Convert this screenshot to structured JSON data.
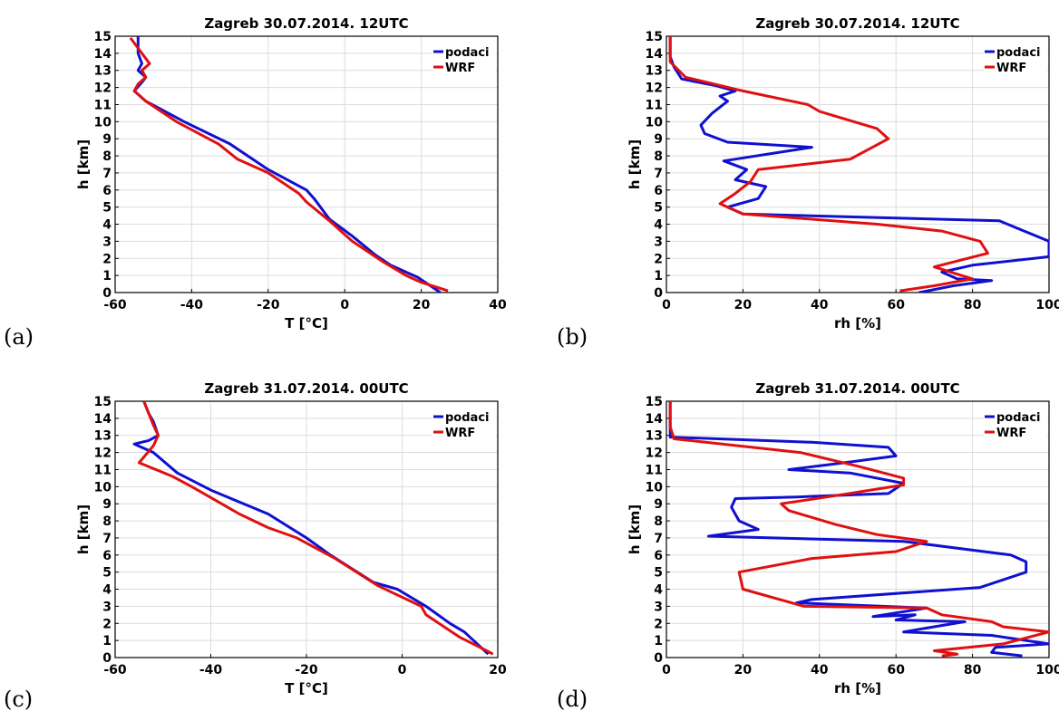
{
  "chart_data": [
    {
      "type": "line",
      "panel_label": "(a)",
      "title": "Zagreb 30.07.2014. 12UTC",
      "xlabel": "T [°C]",
      "ylabel": "h [km]",
      "xlim": [
        -60,
        40
      ],
      "ylim": [
        0,
        15
      ],
      "xticks": [
        "-60",
        "-40",
        "-20",
        "0",
        "20",
        "40"
      ],
      "yticks": [
        "0",
        "1",
        "2",
        "3",
        "4",
        "5",
        "6",
        "7",
        "8",
        "9",
        "10",
        "11",
        "12",
        "13",
        "14",
        "15"
      ],
      "grid": true,
      "legend_position": "top-right",
      "series": [
        {
          "name": "podaci",
          "color": "#1010d0",
          "points": [
            [
              25,
              0
            ],
            [
              23,
              0.3
            ],
            [
              19,
              0.9
            ],
            [
              17,
              1.1
            ],
            [
              12,
              1.6
            ],
            [
              8,
              2.2
            ],
            [
              2,
              3.3
            ],
            [
              -4,
              4.3
            ],
            [
              -8,
              5.5
            ],
            [
              -10,
              6.0
            ],
            [
              -20,
              7.2
            ],
            [
              -30,
              8.7
            ],
            [
              -42,
              10.0
            ],
            [
              -52,
              11.2
            ],
            [
              -55,
              11.8
            ],
            [
              -53,
              12.3
            ],
            [
              -52,
              12.6
            ],
            [
              -54,
              13.0
            ],
            [
              -53,
              13.4
            ],
            [
              -54,
              14.0
            ],
            [
              -54,
              15.0
            ]
          ]
        },
        {
          "name": "WRF",
          "color": "#e01010",
          "points": [
            [
              27,
              0.1
            ],
            [
              20,
              0.6
            ],
            [
              16,
              1.0
            ],
            [
              10,
              1.8
            ],
            [
              2,
              3.0
            ],
            [
              -4,
              4.2
            ],
            [
              -10,
              5.3
            ],
            [
              -12,
              5.8
            ],
            [
              -20,
              7.0
            ],
            [
              -28,
              7.8
            ],
            [
              -33,
              8.7
            ],
            [
              -44,
              10.0
            ],
            [
              -52,
              11.2
            ],
            [
              -55,
              11.8
            ],
            [
              -54,
              12.2
            ],
            [
              -52,
              12.6
            ],
            [
              -53,
              13.0
            ],
            [
              -51,
              13.4
            ],
            [
              -53,
              14.0
            ],
            [
              -56,
              14.9
            ]
          ]
        }
      ]
    },
    {
      "type": "line",
      "panel_label": "(b)",
      "title": "Zagreb 30.07.2014. 12UTC",
      "xlabel": "rh [%]",
      "ylabel": "h [km]",
      "xlim": [
        0,
        100
      ],
      "ylim": [
        0,
        15
      ],
      "xticks": [
        "0",
        "20",
        "40",
        "60",
        "80",
        "100"
      ],
      "yticks": [
        "0",
        "1",
        "2",
        "3",
        "4",
        "5",
        "6",
        "7",
        "8",
        "9",
        "10",
        "11",
        "12",
        "13",
        "14",
        "15"
      ],
      "grid": true,
      "legend_position": "top-right",
      "series": [
        {
          "name": "podaci",
          "color": "#1010d0",
          "points": [
            [
              66,
              0
            ],
            [
              75,
              0.4
            ],
            [
              85,
              0.7
            ],
            [
              76,
              0.8
            ],
            [
              72,
              1.2
            ],
            [
              80,
              1.6
            ],
            [
              100,
              2.1
            ],
            [
              100,
              3.0
            ],
            [
              87,
              4.2
            ],
            [
              20,
              4.6
            ],
            [
              16,
              5.0
            ],
            [
              24,
              5.5
            ],
            [
              26,
              6.2
            ],
            [
              18,
              6.6
            ],
            [
              21,
              7.2
            ],
            [
              15,
              7.7
            ],
            [
              38,
              8.5
            ],
            [
              16,
              8.8
            ],
            [
              10,
              9.3
            ],
            [
              9,
              9.8
            ],
            [
              12,
              10.5
            ],
            [
              16,
              11.2
            ],
            [
              14,
              11.5
            ],
            [
              18,
              11.8
            ],
            [
              13,
              12.1
            ],
            [
              4,
              12.5
            ],
            [
              2,
              13.2
            ],
            [
              1,
              13.8
            ],
            [
              1,
              15
            ]
          ]
        },
        {
          "name": "WRF",
          "color": "#e01010",
          "points": [
            [
              61,
              0.1
            ],
            [
              70,
              0.4
            ],
            [
              80,
              0.8
            ],
            [
              70,
              1.5
            ],
            [
              84,
              2.3
            ],
            [
              82,
              3.0
            ],
            [
              72,
              3.6
            ],
            [
              55,
              4.0
            ],
            [
              20,
              4.6
            ],
            [
              14,
              5.2
            ],
            [
              18,
              5.8
            ],
            [
              22,
              6.5
            ],
            [
              24,
              7.2
            ],
            [
              48,
              7.8
            ],
            [
              58,
              9.0
            ],
            [
              55,
              9.6
            ],
            [
              40,
              10.6
            ],
            [
              37,
              11.0
            ],
            [
              20,
              11.8
            ],
            [
              5,
              12.6
            ],
            [
              1,
              13.5
            ],
            [
              1,
              15
            ]
          ]
        }
      ]
    },
    {
      "type": "line",
      "panel_label": "(c)",
      "title": "Zagreb 31.07.2014. 00UTC",
      "xlabel": "T [°C]",
      "ylabel": "h [km]",
      "xlim": [
        -60,
        20
      ],
      "ylim": [
        0,
        15
      ],
      "xticks": [
        "-60",
        "-40",
        "-20",
        "0",
        "20"
      ],
      "yticks": [
        "0",
        "1",
        "2",
        "3",
        "4",
        "5",
        "6",
        "7",
        "8",
        "9",
        "10",
        "11",
        "12",
        "13",
        "14",
        "15"
      ],
      "grid": true,
      "legend_position": "top-right",
      "series": [
        {
          "name": "podaci",
          "color": "#1010d0",
          "points": [
            [
              18,
              0.2
            ],
            [
              13,
              1.5
            ],
            [
              10,
              2.0
            ],
            [
              5,
              3.0
            ],
            [
              -1,
              4.0
            ],
            [
              -6,
              4.4
            ],
            [
              -15,
              6.0
            ],
            [
              -20,
              7.0
            ],
            [
              -28,
              8.4
            ],
            [
              -40,
              9.8
            ],
            [
              -47,
              10.8
            ],
            [
              -52,
              12.0
            ],
            [
              -56,
              12.5
            ],
            [
              -53,
              12.7
            ],
            [
              -51,
              13.0
            ],
            [
              -52,
              13.8
            ],
            [
              -53,
              14.3
            ],
            [
              -54,
              15.0
            ]
          ]
        },
        {
          "name": "WRF",
          "color": "#e01010",
          "points": [
            [
              19,
              0.2
            ],
            [
              17,
              0.5
            ],
            [
              12,
              1.2
            ],
            [
              5,
              2.5
            ],
            [
              4,
              3.0
            ],
            [
              -5,
              4.2
            ],
            [
              -14,
              5.8
            ],
            [
              -22,
              7.0
            ],
            [
              -28,
              7.6
            ],
            [
              -34,
              8.4
            ],
            [
              -44,
              10.0
            ],
            [
              -48,
              10.6
            ],
            [
              -55,
              11.4
            ],
            [
              -52,
              12.4
            ],
            [
              -51,
              13.0
            ],
            [
              -52,
              13.6
            ],
            [
              -53,
              14.3
            ],
            [
              -54,
              15.0
            ]
          ]
        }
      ]
    },
    {
      "type": "line",
      "panel_label": "(d)",
      "title": "Zagreb 31.07.2014. 00UTC",
      "xlabel": "rh [%]",
      "ylabel": "h [km]",
      "xlim": [
        0,
        100
      ],
      "ylim": [
        0,
        15
      ],
      "xticks": [
        "0",
        "20",
        "40",
        "60",
        "80",
        "100"
      ],
      "yticks": [
        "0",
        "1",
        "2",
        "3",
        "4",
        "5",
        "6",
        "7",
        "8",
        "9",
        "10",
        "11",
        "12",
        "13",
        "14",
        "15"
      ],
      "grid": true,
      "legend_position": "top-right",
      "series": [
        {
          "name": "podaci",
          "color": "#1010d0",
          "points": [
            [
              93,
              0.1
            ],
            [
              85,
              0.3
            ],
            [
              86,
              0.6
            ],
            [
              100,
              0.8
            ],
            [
              85,
              1.3
            ],
            [
              62,
              1.5
            ],
            [
              70,
              1.8
            ],
            [
              78,
              2.1
            ],
            [
              60,
              2.2
            ],
            [
              65,
              2.5
            ],
            [
              54,
              2.4
            ],
            [
              68,
              2.9
            ],
            [
              34,
              3.2
            ],
            [
              38,
              3.4
            ],
            [
              82,
              4.1
            ],
            [
              94,
              5.0
            ],
            [
              94,
              5.6
            ],
            [
              90,
              6.0
            ],
            [
              62,
              6.8
            ],
            [
              11,
              7.1
            ],
            [
              24,
              7.5
            ],
            [
              19,
              8.0
            ],
            [
              17,
              8.8
            ],
            [
              18,
              9.3
            ],
            [
              34,
              9.4
            ],
            [
              58,
              9.6
            ],
            [
              62,
              10.2
            ],
            [
              48,
              10.8
            ],
            [
              32,
              11.0
            ],
            [
              43,
              11.3
            ],
            [
              60,
              11.8
            ],
            [
              58,
              12.3
            ],
            [
              38,
              12.6
            ],
            [
              1,
              12.9
            ],
            [
              1,
              13.5
            ],
            [
              1,
              15
            ]
          ]
        },
        {
          "name": "WRF",
          "color": "#e01010",
          "points": [
            [
              72,
              0.1
            ],
            [
              76,
              0.2
            ],
            [
              70,
              0.4
            ],
            [
              88,
              0.8
            ],
            [
              100,
              1.5
            ],
            [
              88,
              1.8
            ],
            [
              85,
              2.1
            ],
            [
              72,
              2.5
            ],
            [
              68,
              2.9
            ],
            [
              36,
              3.0
            ],
            [
              20,
              4.0
            ],
            [
              19,
              5.0
            ],
            [
              38,
              5.8
            ],
            [
              60,
              6.2
            ],
            [
              68,
              6.8
            ],
            [
              55,
              7.2
            ],
            [
              44,
              7.8
            ],
            [
              32,
              8.6
            ],
            [
              30,
              9.0
            ],
            [
              42,
              9.4
            ],
            [
              62,
              10.1
            ],
            [
              62,
              10.5
            ],
            [
              50,
              11.2
            ],
            [
              35,
              12.0
            ],
            [
              2,
              12.8
            ],
            [
              1,
              13.5
            ],
            [
              1,
              15
            ]
          ]
        }
      ]
    }
  ]
}
